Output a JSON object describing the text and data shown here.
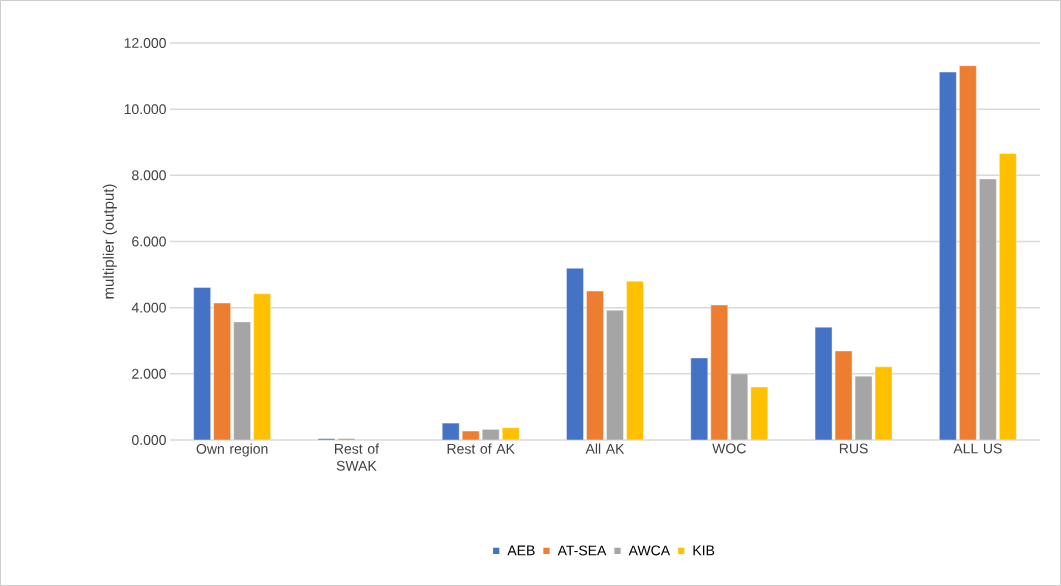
{
  "chart_data": {
    "type": "bar",
    "ylabel": "multiplier (output)",
    "categories": [
      "Own region",
      "Rest of SWAK",
      "Rest of AK",
      "All AK",
      "WOC",
      "RUS",
      "ALL US"
    ],
    "series": [
      {
        "name": "AEB",
        "color": "#4472c4",
        "values": [
          4.61,
          0.04,
          0.51,
          5.19,
          2.48,
          3.41,
          11.12
        ]
      },
      {
        "name": "AT-SEA",
        "color": "#ed7d31",
        "values": [
          4.14,
          0.04,
          0.27,
          4.5,
          4.08,
          2.69,
          11.31
        ]
      },
      {
        "name": "AWCA",
        "color": "#a5a5a5",
        "values": [
          3.57,
          null,
          0.32,
          3.92,
          2.0,
          1.93,
          7.89
        ]
      },
      {
        "name": "KIB",
        "color": "#ffc000",
        "values": [
          4.42,
          null,
          0.37,
          4.8,
          1.6,
          2.21,
          8.66
        ]
      }
    ],
    "ylim": [
      0,
      12
    ],
    "yticks": [
      {
        "value": 0,
        "label": "0.000"
      },
      {
        "value": 2,
        "label": "2.000"
      },
      {
        "value": 4,
        "label": "4.000"
      },
      {
        "value": 6,
        "label": "6.000"
      },
      {
        "value": 8,
        "label": "8.000"
      },
      {
        "value": 10,
        "label": "10.000"
      },
      {
        "value": 12,
        "label": "12.000"
      }
    ],
    "grid": "y",
    "legend": "bottom"
  }
}
